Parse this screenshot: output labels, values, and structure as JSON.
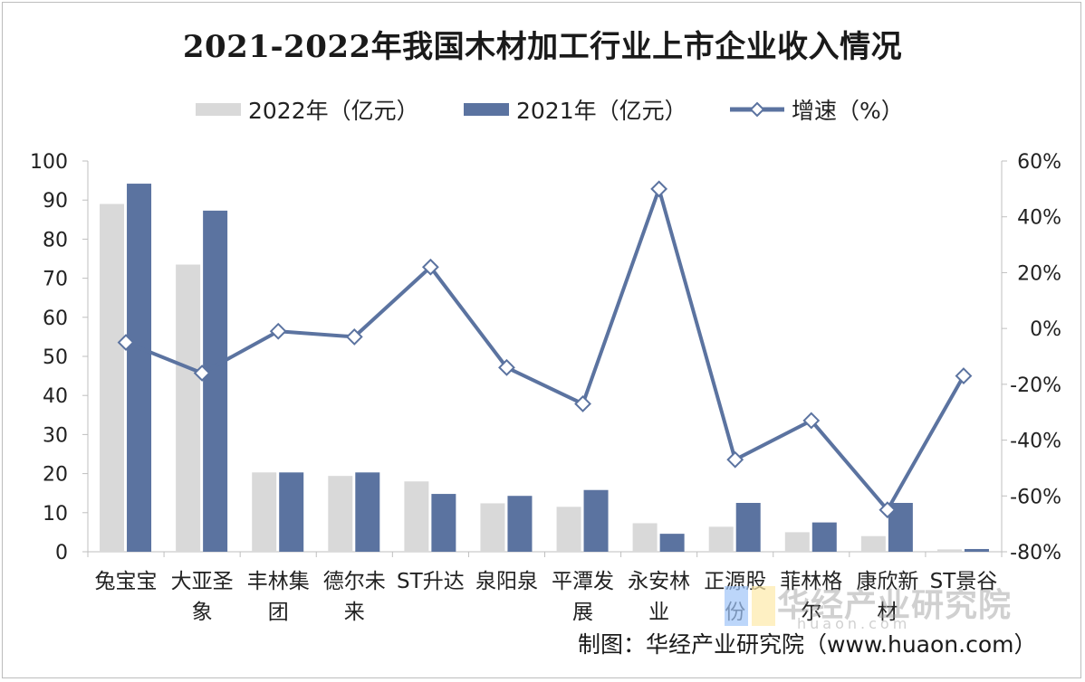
{
  "title": "2021-2022年我国木材加工行业上市企业收入情况",
  "legend": {
    "s2022": "2022年（亿元）",
    "s2021": "2021年（亿元）",
    "growth": "增速（%）"
  },
  "colors": {
    "s2022": "#d9d9d9",
    "s2021": "#5b73a0",
    "growth": "#5b73a0",
    "axis": "#bfbfbf"
  },
  "footer": "制图：华经产业研究院（www.huaon.com）",
  "watermark": {
    "name": "华经产业研究院",
    "url": "huaon.com"
  },
  "chart_data": {
    "type": "bar",
    "categories": [
      [
        "兔宝宝"
      ],
      [
        "大亚圣",
        "象"
      ],
      [
        "丰林集",
        "团"
      ],
      [
        "德尔未",
        "来"
      ],
      [
        "ST升达"
      ],
      [
        "泉阳泉"
      ],
      [
        "平潭发",
        "展"
      ],
      [
        "永安林",
        "业"
      ],
      [
        "正源股",
        "份"
      ],
      [
        "菲林格",
        "尔"
      ],
      [
        "康欣新",
        "材"
      ],
      [
        "ST景谷"
      ]
    ],
    "series": [
      {
        "name": "2022年（亿元）",
        "type": "bar",
        "axis": "left",
        "values": [
          89,
          73.5,
          20.3,
          19.4,
          18,
          12.4,
          11.5,
          7.3,
          6.4,
          5.0,
          4.0,
          0.6
        ]
      },
      {
        "name": "2021年（亿元）",
        "type": "bar",
        "axis": "left",
        "values": [
          94.2,
          87.3,
          20.3,
          20.3,
          14.8,
          14.3,
          15.8,
          4.6,
          12.5,
          7.5,
          12.5,
          0.7
        ]
      },
      {
        "name": "增速（%）",
        "type": "line",
        "axis": "right",
        "values": [
          -5,
          -16,
          -1,
          -3,
          22,
          -14,
          -27,
          50,
          -47,
          -33,
          -65,
          -17
        ]
      }
    ],
    "ylim_left": [
      0,
      100
    ],
    "yticks_left": [
      "0",
      "10",
      "20",
      "30",
      "40",
      "50",
      "60",
      "70",
      "80",
      "90",
      "100"
    ],
    "ylim_right": [
      -80,
      60
    ],
    "yticks_right": [
      "-80%",
      "-60%",
      "-40%",
      "-20%",
      "0%",
      "20%",
      "40%",
      "60%"
    ],
    "grid": false,
    "legend_position": "top"
  }
}
